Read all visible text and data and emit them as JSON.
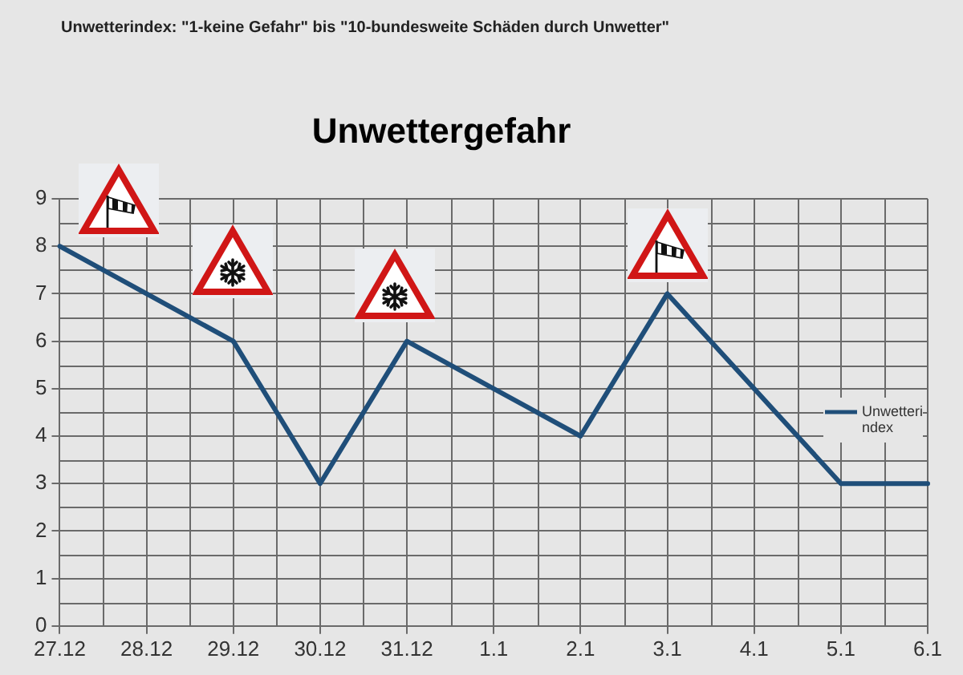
{
  "chart_data": {
    "type": "line",
    "title": "Unwettergefahr",
    "annotations": [
      "Unwetterindex: \"1-keine Gefahr\" bis \"10-bundesweite Schäden durch Unwetter\""
    ],
    "categories": [
      "27.12",
      "28.12",
      "29.12",
      "30.12",
      "31.12",
      "1.1",
      "2.1",
      "3.1",
      "4.1",
      "5.1",
      "6.1"
    ],
    "series": [
      {
        "name": "Unwetterindex",
        "color": "#1f4e79",
        "values": [
          8,
          7,
          6,
          3,
          6,
          5,
          4,
          7,
          5,
          3,
          3
        ]
      }
    ],
    "ylim": [
      0,
      9
    ],
    "yticks": [
      0,
      1,
      2,
      3,
      4,
      5,
      6,
      7,
      8,
      9
    ],
    "grid": true,
    "legend": "right"
  }
}
